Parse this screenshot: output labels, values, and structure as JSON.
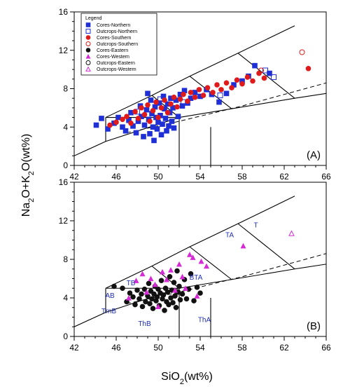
{
  "chart_data": [
    {
      "type": "scatter",
      "panel_label": "(A)",
      "xlim": [
        42,
        66
      ],
      "ylim": [
        0,
        16
      ],
      "xticks": [
        42,
        46,
        50,
        54,
        58,
        62,
        66
      ],
      "yticks": [
        0,
        4,
        8,
        12,
        16
      ],
      "legend": {
        "title": "Legend",
        "placement": "top-left",
        "entries": [
          {
            "label": "Cores-Northern",
            "marker": "square",
            "filled": true,
            "color": "#1f2fd6"
          },
          {
            "label": "Outcrops-Northern",
            "marker": "square",
            "filled": false,
            "color": "#1f2fd6"
          },
          {
            "label": "Cores-Southern",
            "marker": "circle",
            "filled": true,
            "color": "#e01a1a"
          },
          {
            "label": "Outcrops-Southern",
            "marker": "circle",
            "filled": false,
            "color": "#e01a1a"
          },
          {
            "label": "Cores-Eastern",
            "marker": "circle",
            "filled": true,
            "color": "#111111"
          },
          {
            "label": "Cores-Western",
            "marker": "triangle",
            "filled": true,
            "color": "#d62ad6"
          },
          {
            "label": "Outcrops-Eastern",
            "marker": "circle",
            "filled": false,
            "color": "#111111"
          },
          {
            "label": "Outcrops-Western",
            "marker": "triangle",
            "filled": false,
            "color": "#d62ad6"
          }
        ]
      },
      "series": [
        {
          "name": "Cores-Northern",
          "points": [
            [
              44.1,
              4.2
            ],
            [
              44.6,
              4.9
            ],
            [
              45.2,
              3.8
            ],
            [
              45.8,
              4.4
            ],
            [
              46.2,
              5.0
            ],
            [
              46.6,
              4.0
            ],
            [
              46.9,
              3.6
            ],
            [
              47.2,
              4.7
            ],
            [
              47.4,
              5.5
            ],
            [
              47.6,
              4.1
            ],
            [
              47.9,
              3.4
            ],
            [
              48.1,
              4.6
            ],
            [
              48.3,
              6.2
            ],
            [
              48.4,
              5.1
            ],
            [
              48.6,
              3.0
            ],
            [
              48.7,
              4.2
            ],
            [
              48.9,
              5.8
            ],
            [
              49.0,
              7.5
            ],
            [
              49.1,
              4.8
            ],
            [
              49.2,
              3.3
            ],
            [
              49.3,
              6.8
            ],
            [
              49.4,
              5.4
            ],
            [
              49.5,
              4.0
            ],
            [
              49.6,
              2.6
            ],
            [
              49.7,
              6.1
            ],
            [
              49.8,
              5.0
            ],
            [
              49.9,
              3.8
            ],
            [
              50.0,
              4.5
            ],
            [
              50.1,
              6.5
            ],
            [
              50.2,
              5.2
            ],
            [
              50.3,
              3.2
            ],
            [
              50.4,
              4.3
            ],
            [
              50.5,
              7.2
            ],
            [
              50.6,
              5.9
            ],
            [
              50.7,
              4.9
            ],
            [
              50.8,
              3.6
            ],
            [
              50.9,
              6.4
            ],
            [
              51.0,
              4.1
            ],
            [
              51.1,
              5.5
            ],
            [
              51.2,
              7.0
            ],
            [
              51.3,
              4.6
            ],
            [
              51.4,
              6.0
            ],
            [
              51.5,
              3.9
            ],
            [
              51.7,
              6.8
            ],
            [
              51.9,
              5.1
            ],
            [
              52.1,
              7.4
            ],
            [
              52.3,
              6.2
            ],
            [
              52.5,
              7.8
            ],
            [
              52.8,
              6.5
            ],
            [
              53.1,
              7.0
            ],
            [
              53.5,
              7.6
            ],
            [
              54.0,
              7.2
            ],
            [
              54.6,
              7.9
            ],
            [
              55.1,
              7.4
            ],
            [
              55.8,
              6.6
            ],
            [
              56.5,
              7.5
            ],
            [
              57.2,
              8.4
            ],
            [
              58.0,
              8.8
            ],
            [
              58.6,
              9.3
            ],
            [
              59.2,
              10.4
            ],
            [
              60.6,
              9.6
            ]
          ]
        },
        {
          "name": "Outcrops-Northern",
          "points": [
            [
              48.0,
              5.6
            ],
            [
              50.2,
              6.9
            ],
            [
              52.4,
              6.6
            ],
            [
              55.9,
              7.3
            ],
            [
              60.2,
              9.9
            ],
            [
              61.0,
              9.2
            ]
          ]
        },
        {
          "name": "Cores-Southern",
          "points": [
            [
              45.4,
              4.2
            ],
            [
              46.0,
              4.5
            ],
            [
              46.6,
              4.8
            ],
            [
              47.0,
              5.1
            ],
            [
              47.4,
              4.4
            ],
            [
              47.8,
              5.6
            ],
            [
              48.1,
              4.9
            ],
            [
              48.4,
              6.0
            ],
            [
              48.7,
              5.3
            ],
            [
              49.0,
              6.3
            ],
            [
              49.2,
              4.6
            ],
            [
              49.5,
              5.7
            ],
            [
              49.8,
              6.6
            ],
            [
              50.0,
              5.0
            ],
            [
              50.3,
              6.0
            ],
            [
              50.6,
              6.8
            ],
            [
              50.9,
              5.5
            ],
            [
              51.2,
              6.4
            ],
            [
              51.5,
              7.1
            ],
            [
              51.8,
              6.1
            ],
            [
              52.1,
              6.9
            ],
            [
              52.4,
              7.4
            ],
            [
              52.8,
              6.7
            ],
            [
              53.1,
              7.6
            ],
            [
              53.5,
              7.1
            ],
            [
              53.9,
              7.9
            ],
            [
              54.3,
              7.3
            ],
            [
              54.7,
              8.1
            ],
            [
              55.2,
              7.6
            ],
            [
              55.6,
              8.4
            ],
            [
              56.0,
              7.9
            ],
            [
              56.5,
              8.6
            ],
            [
              57.0,
              8.1
            ],
            [
              57.5,
              8.9
            ],
            [
              58.0,
              8.5
            ],
            [
              58.5,
              9.2
            ],
            [
              59.0,
              8.8
            ],
            [
              59.6,
              9.6
            ],
            [
              60.1,
              9.1
            ],
            [
              64.3,
              10.1
            ]
          ]
        },
        {
          "name": "Outcrops-Southern",
          "points": [
            [
              59.8,
              9.9
            ],
            [
              63.7,
              11.8
            ]
          ]
        }
      ]
    },
    {
      "type": "scatter",
      "panel_label": "(B)",
      "xlim": [
        42,
        66
      ],
      "ylim": [
        0,
        16
      ],
      "xticks": [
        42,
        46,
        50,
        54,
        58,
        62,
        66
      ],
      "yticks": [
        0,
        4,
        8,
        12,
        16
      ],
      "region_labels": [
        {
          "text": "TA",
          "x": 56.8,
          "y": 10.3
        },
        {
          "text": "T",
          "x": 59.3,
          "y": 11.3
        },
        {
          "text": "BTA",
          "x": 53.6,
          "y": 5.9
        },
        {
          "text": "TB",
          "x": 47.4,
          "y": 5.3
        },
        {
          "text": "AB",
          "x": 45.4,
          "y": 4.0
        },
        {
          "text": "TrnB",
          "x": 45.3,
          "y": 2.4
        },
        {
          "text": "ThB",
          "x": 48.7,
          "y": 1.1
        },
        {
          "text": "ThA",
          "x": 54.4,
          "y": 1.5
        }
      ],
      "series": [
        {
          "name": "Cores-Eastern",
          "points": [
            [
              45.8,
              5.2
            ],
            [
              46.6,
              5.0
            ],
            [
              47.0,
              3.6
            ],
            [
              47.3,
              4.5
            ],
            [
              47.6,
              4.1
            ],
            [
              47.8,
              3.3
            ],
            [
              48.0,
              4.8
            ],
            [
              48.2,
              3.9
            ],
            [
              48.4,
              4.4
            ],
            [
              48.5,
              3.1
            ],
            [
              48.7,
              4.9
            ],
            [
              48.8,
              3.6
            ],
            [
              49.0,
              4.2
            ],
            [
              49.1,
              5.5
            ],
            [
              49.2,
              3.4
            ],
            [
              49.3,
              4.7
            ],
            [
              49.4,
              3.9
            ],
            [
              49.5,
              2.9
            ],
            [
              49.6,
              4.4
            ],
            [
              49.7,
              5.2
            ],
            [
              49.8,
              3.7
            ],
            [
              49.9,
              4.1
            ],
            [
              50.0,
              4.9
            ],
            [
              50.1,
              3.2
            ],
            [
              50.2,
              4.5
            ],
            [
              50.3,
              5.8
            ],
            [
              50.4,
              3.9
            ],
            [
              50.5,
              4.3
            ],
            [
              50.6,
              2.7
            ],
            [
              50.7,
              5.0
            ],
            [
              50.8,
              3.6
            ],
            [
              50.9,
              4.6
            ],
            [
              51.0,
              3.3
            ],
            [
              51.1,
              6.2
            ],
            [
              51.2,
              4.0
            ],
            [
              51.3,
              4.8
            ],
            [
              51.4,
              3.5
            ],
            [
              51.5,
              5.6
            ],
            [
              51.6,
              4.2
            ],
            [
              51.7,
              3.0
            ],
            [
              51.8,
              6.8
            ],
            [
              51.9,
              4.6
            ],
            [
              52.0,
              5.2
            ],
            [
              52.1,
              3.8
            ],
            [
              52.3,
              4.4
            ],
            [
              52.5,
              5.9
            ],
            [
              52.7,
              3.9
            ],
            [
              52.9,
              4.9
            ],
            [
              53.1,
              6.5
            ],
            [
              53.4,
              3.7
            ],
            [
              53.7,
              5.1
            ],
            [
              54.0,
              4.5
            ]
          ]
        },
        {
          "name": "Cores-Western",
          "points": [
            [
              47.2,
              4.0
            ],
            [
              47.9,
              5.8
            ],
            [
              48.5,
              6.5
            ],
            [
              48.9,
              4.6
            ],
            [
              49.3,
              6.0
            ],
            [
              49.7,
              5.4
            ],
            [
              50.0,
              3.1
            ],
            [
              50.4,
              6.7
            ],
            [
              50.8,
              5.9
            ],
            [
              51.2,
              6.9
            ],
            [
              51.6,
              4.8
            ],
            [
              52.0,
              7.5
            ],
            [
              52.3,
              6.2
            ],
            [
              52.6,
              5.0
            ],
            [
              53.0,
              8.5
            ],
            [
              53.3,
              8.2
            ],
            [
              53.7,
              4.2
            ],
            [
              54.1,
              7.8
            ],
            [
              54.6,
              7.3
            ],
            [
              58.1,
              9.4
            ]
          ]
        },
        {
          "name": "Outcrops-Western",
          "points": [
            [
              62.7,
              10.7
            ]
          ]
        }
      ]
    }
  ],
  "axes": {
    "y_label": {
      "pre": "Na",
      "sub1": "2",
      "mid": "O+K",
      "sub2": "2",
      "post": "O(wt%)"
    },
    "x_label": {
      "pre": "SiO",
      "sub": "2",
      "post": "(wt%)"
    }
  },
  "colors": {
    "blue": "#1f2fd6",
    "red": "#e01a1a",
    "black": "#111111",
    "magenta": "#d62ad6",
    "label_blue": "#1f2fb4"
  }
}
